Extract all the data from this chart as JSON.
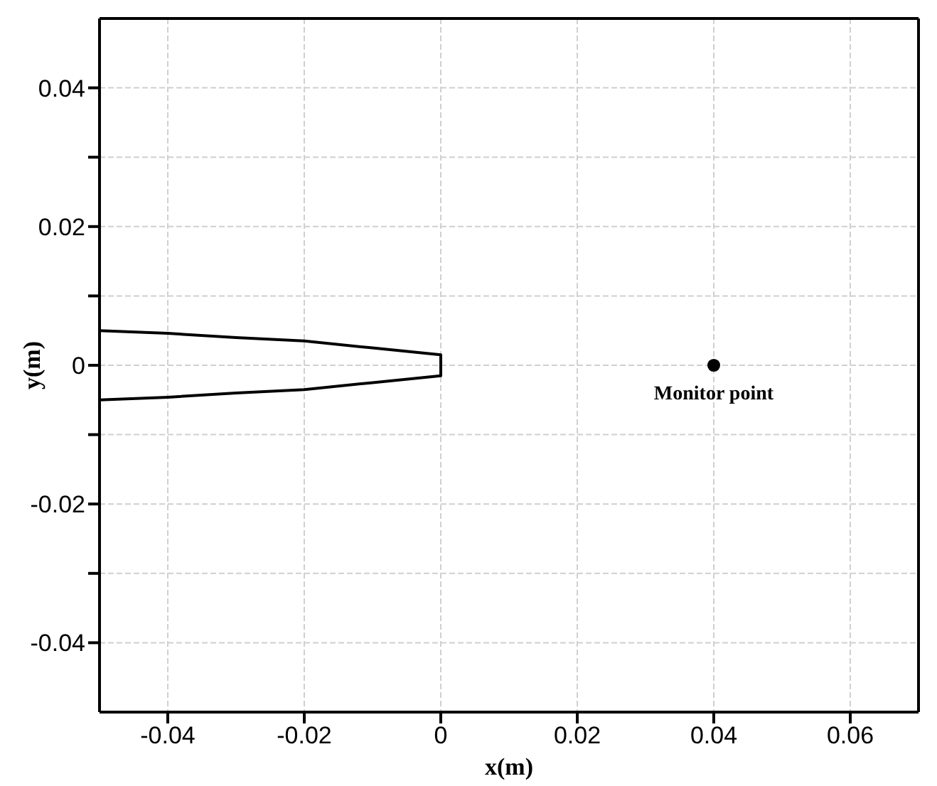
{
  "chart_data": {
    "type": "line",
    "xlabel": "x(m)",
    "ylabel": "y(m)",
    "xlim": [
      -0.05,
      0.07
    ],
    "xticks": [
      -0.04,
      -0.02,
      0,
      0.02,
      0.04,
      0.06
    ],
    "ylim": [
      -0.05,
      0.05
    ],
    "yticks": [
      -0.04,
      {
        "value": -0.03,
        "label": null
      },
      -0.02,
      {
        "value": -0.01,
        "label": null
      },
      0,
      {
        "value": 0.01,
        "label": null
      },
      0.02,
      {
        "value": 0.03,
        "label": null
      },
      0.04
    ],
    "grid": true,
    "series": [
      {
        "color": "#000000",
        "marker": "none",
        "line_style": "solid",
        "x": [
          -0.05,
          -0.04,
          -0.03,
          -0.02,
          -0.01,
          0,
          0,
          -0.01,
          -0.02,
          -0.03,
          -0.04,
          -0.05
        ],
        "values": [
          0.005,
          0.0046,
          0.004,
          0.0035,
          0.0025,
          0.0015,
          -0.0015,
          -0.0025,
          -0.0035,
          -0.004,
          -0.0046,
          -0.005
        ]
      },
      {
        "type": "scatter",
        "color": "#000000",
        "marker": "circle",
        "x": [
          0.04
        ],
        "values": [
          0
        ]
      }
    ],
    "annotations": [
      {
        "text": "Monitor point",
        "x": 0.04,
        "y": 0
      }
    ]
  }
}
